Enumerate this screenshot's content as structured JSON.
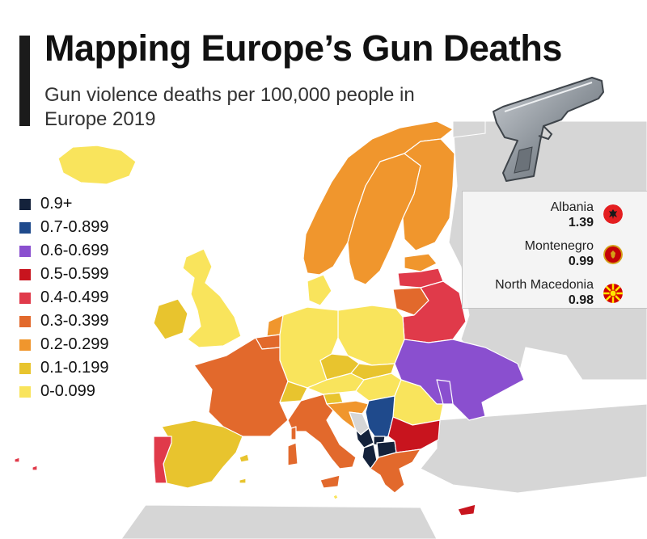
{
  "title": "Mapping Europe’s Gun Deaths",
  "subtitle": "Gun violence deaths per 100,000 people in Europe 2019",
  "legend": [
    {
      "label": "0.9+",
      "color": "#14223b"
    },
    {
      "label": "0.7-0.899",
      "color": "#1f4a8c"
    },
    {
      "label": "0.6-0.699",
      "color": "#8a4fcf"
    },
    {
      "label": "0.5-0.599",
      "color": "#c8141e"
    },
    {
      "label": "0.4-0.499",
      "color": "#e03a4a"
    },
    {
      "label": "0.3-0.399",
      "color": "#e2692c"
    },
    {
      "label": "0.2-0.299",
      "color": "#f0962d"
    },
    {
      "label": "0.1-0.199",
      "color": "#e8c42e"
    },
    {
      "label": "0-0.099",
      "color": "#f9e45c"
    }
  ],
  "callouts": [
    {
      "country": "Albania",
      "value": "1.39",
      "flag": "albania-flag-icon"
    },
    {
      "country": "Montenegro",
      "value": "0.99",
      "flag": "montenegro-flag-icon"
    },
    {
      "country": "North Macedonia",
      "value": "0.98",
      "flag": "north-macedonia-flag-icon"
    }
  ],
  "colors": {
    "land_outside": "#d6d6d6",
    "sea": "#ffffff",
    "border": "#ffffff"
  },
  "icons": {
    "pistol": "pistol-icon"
  }
}
